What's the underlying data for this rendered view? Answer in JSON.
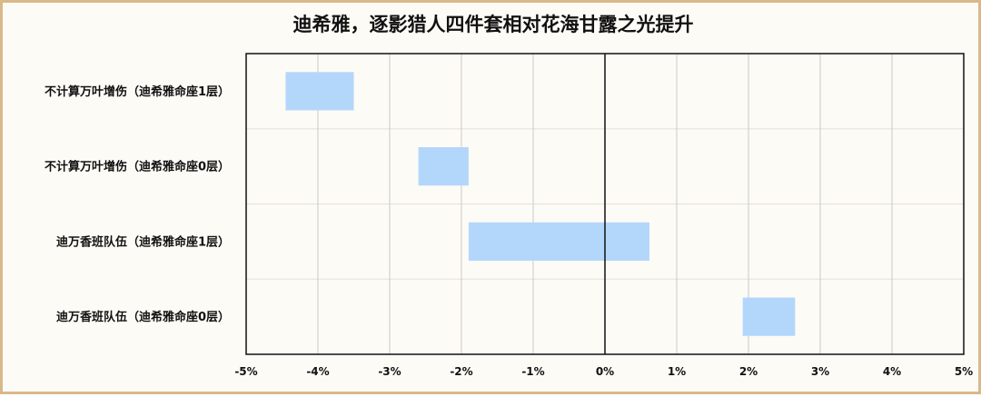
{
  "chart_data": {
    "type": "bar",
    "orientation": "horizontal",
    "style": "floating-range",
    "title": "迪希雅，逐影猎人四件套相对花海甘露之光提升",
    "categories": [
      "不计算万叶增伤（迪希雅命座1层）",
      "不计算万叶增伤（迪希雅命座0层）",
      "迪万香班队伍（迪希雅命座1层）",
      "迪万香班队伍（迪希雅命座0层）"
    ],
    "ranges": [
      [
        -4.45,
        -3.5
      ],
      [
        -2.6,
        -1.9
      ],
      [
        -1.9,
        0.62
      ],
      [
        1.92,
        2.65
      ]
    ],
    "unit": "%",
    "xlim": [
      -5,
      5
    ],
    "xticks": [
      -5,
      -4,
      -3,
      -2,
      -1,
      0,
      1,
      2,
      3,
      4,
      5
    ],
    "xtick_labels": [
      "-5%",
      "-4%",
      "-3%",
      "-2%",
      "-1%",
      "0%",
      "1%",
      "2%",
      "3%",
      "4%",
      "5%"
    ],
    "grid": true,
    "bar_color": "#b3d7fb"
  }
}
